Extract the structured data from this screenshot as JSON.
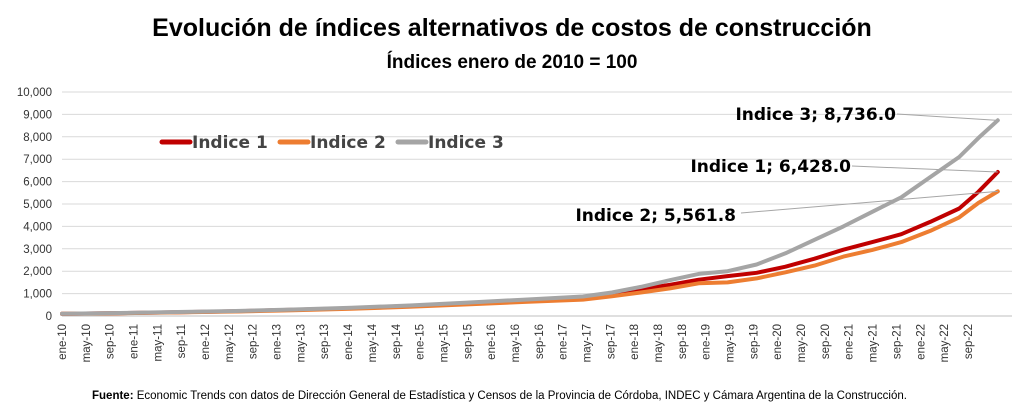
{
  "chart_data": {
    "type": "line",
    "title": "Evolución de índices alternativos de costos de construcción",
    "subtitle": "Índices enero de 2010 = 100",
    "xlabel": "",
    "ylabel": "",
    "ylim": [
      0,
      10000
    ],
    "yticks": [
      "0",
      "1,000",
      "2,000",
      "3,000",
      "4,000",
      "5,000",
      "6,000",
      "7,000",
      "8,000",
      "9,000",
      "10,000"
    ],
    "grid": true,
    "legend_position": "top-left",
    "x_tick_labels": [
      "ene-10",
      "may-10",
      "sep-10",
      "ene-11",
      "may-11",
      "sep-11",
      "ene-12",
      "may-12",
      "sep-12",
      "ene-13",
      "may-13",
      "sep-13",
      "ene-14",
      "may-14",
      "sep-14",
      "ene-15",
      "may-15",
      "sep-15",
      "ene-16",
      "may-16",
      "sep-16",
      "ene-17",
      "may-17",
      "sep-17",
      "ene-18",
      "may-18",
      "sep-18",
      "ene-19",
      "may-19",
      "sep-19",
      "ene-20",
      "may-20",
      "sep-20",
      "ene-21",
      "may-21",
      "sep-21",
      "ene-22",
      "may-22",
      "sep-22"
    ],
    "x_period_months": 157,
    "series": [
      {
        "name": "Indice 1",
        "color": "#C00000",
        "points": [
          [
            0,
            100
          ],
          [
            12,
            130
          ],
          [
            24,
            170
          ],
          [
            36,
            215
          ],
          [
            48,
            275
          ],
          [
            60,
            350
          ],
          [
            72,
            450
          ],
          [
            84,
            570
          ],
          [
            96,
            700
          ],
          [
            108,
            820
          ],
          [
            114,
            1000
          ],
          [
            120,
            1200
          ],
          [
            126,
            1390
          ],
          [
            132,
            1620
          ],
          [
            138,
            1780
          ],
          [
            144,
            1930
          ],
          [
            150,
            2200
          ],
          [
            156,
            2560
          ],
          [
            162,
            2960
          ],
          [
            168,
            3300
          ],
          [
            174,
            3650
          ],
          [
            180,
            4200
          ],
          [
            186,
            4800
          ],
          [
            190,
            5550
          ],
          [
            194,
            6428
          ]
        ],
        "end_label": "Indice 1; 6,428.0"
      },
      {
        "name": "Indice 2",
        "color": "#ED7D31",
        "points": [
          [
            0,
            100
          ],
          [
            12,
            125
          ],
          [
            24,
            160
          ],
          [
            36,
            200
          ],
          [
            48,
            255
          ],
          [
            60,
            320
          ],
          [
            72,
            410
          ],
          [
            84,
            520
          ],
          [
            96,
            630
          ],
          [
            108,
            730
          ],
          [
            114,
            880
          ],
          [
            120,
            1050
          ],
          [
            126,
            1230
          ],
          [
            132,
            1460
          ],
          [
            138,
            1500
          ],
          [
            144,
            1680
          ],
          [
            150,
            1950
          ],
          [
            156,
            2250
          ],
          [
            162,
            2650
          ],
          [
            168,
            2950
          ],
          [
            174,
            3300
          ],
          [
            180,
            3800
          ],
          [
            186,
            4400
          ],
          [
            190,
            5050
          ],
          [
            194,
            5561.8
          ]
        ]
      },
      {
        "name": "Indice 3",
        "color": "#A5A5A5",
        "points": [
          [
            0,
            100
          ],
          [
            12,
            135
          ],
          [
            24,
            180
          ],
          [
            36,
            225
          ],
          [
            48,
            290
          ],
          [
            60,
            370
          ],
          [
            72,
            470
          ],
          [
            84,
            600
          ],
          [
            96,
            730
          ],
          [
            108,
            870
          ],
          [
            114,
            1050
          ],
          [
            120,
            1300
          ],
          [
            126,
            1600
          ],
          [
            132,
            1880
          ],
          [
            138,
            2000
          ],
          [
            144,
            2300
          ],
          [
            150,
            2800
          ],
          [
            156,
            3400
          ],
          [
            162,
            4000
          ],
          [
            168,
            4650
          ],
          [
            174,
            5300
          ],
          [
            180,
            6200
          ],
          [
            186,
            7100
          ],
          [
            190,
            7950
          ],
          [
            194,
            8736
          ]
        ]
      }
    ],
    "callouts": [
      {
        "series": "Indice 3",
        "text": "Indice 3; 8,736.0"
      },
      {
        "series": "Indice 1",
        "text": "Indice 1; 6,428.0"
      },
      {
        "series": "Indice 2",
        "text": "Indice 2; 5,561.8"
      }
    ]
  },
  "source": {
    "label": "Fuente:",
    "text": " Economic Trends con datos de Dirección General de Estadística y Censos de la Provincia de Córdoba, INDEC y Cámara Argentina de la Construcción."
  }
}
